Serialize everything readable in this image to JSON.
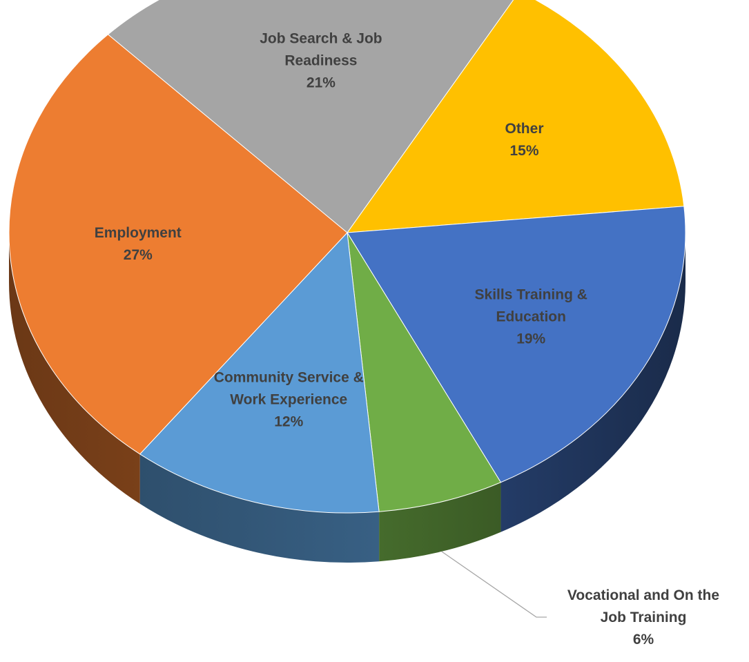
{
  "chart_data": {
    "type": "pie",
    "style": "3d",
    "title": "",
    "slices": [
      {
        "label": [
          "Other"
        ],
        "value_label": "15%",
        "value": 15,
        "color": "#FFC000"
      },
      {
        "label": [
          "Skills Training &",
          "Education"
        ],
        "value_label": "19%",
        "value": 19,
        "color": "#4472C4"
      },
      {
        "label": [
          "Vocational and On the",
          "Job Training"
        ],
        "value_label": "6%",
        "value": 6,
        "color": "#70AD47"
      },
      {
        "label": [
          "Community Service &",
          "Work Experience"
        ],
        "value_label": "12%",
        "value": 12,
        "color": "#5B9BD5"
      },
      {
        "label": [
          "Employment"
        ],
        "value_label": "27%",
        "value": 27,
        "color": "#ED7D31"
      },
      {
        "label": [
          "Job Search & Job",
          "Readiness"
        ],
        "value_label": "21%",
        "value": 21,
        "color": "#A5A5A5"
      }
    ]
  }
}
